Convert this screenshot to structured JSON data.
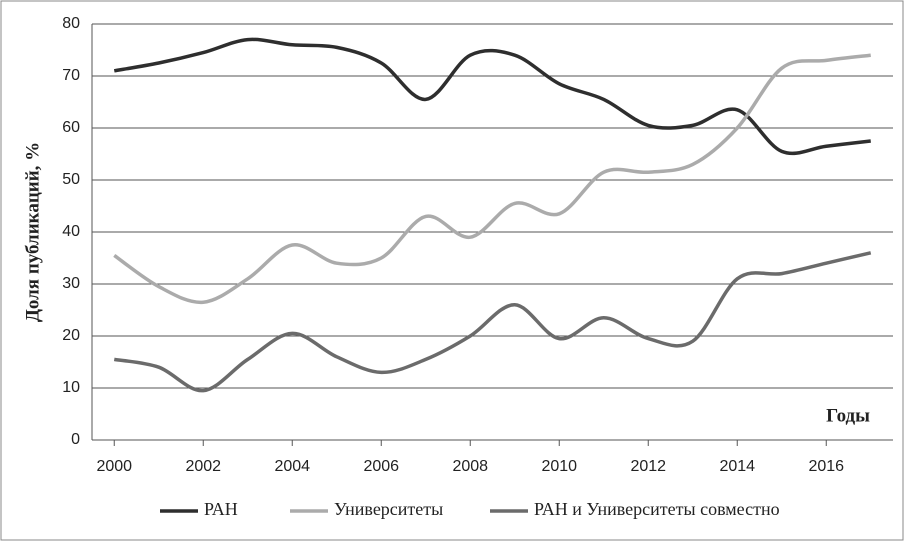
{
  "chart_data": {
    "type": "line",
    "y_label": "Доля публикаций, %",
    "annotation": "Годы",
    "x": [
      2000,
      2001,
      2002,
      2003,
      2004,
      2005,
      2006,
      2007,
      2008,
      2009,
      2010,
      2011,
      2012,
      2013,
      2014,
      2015,
      2016,
      2017
    ],
    "xlim": [
      1999.5,
      2017.5
    ],
    "xticks": [
      2000,
      2002,
      2004,
      2006,
      2008,
      2010,
      2012,
      2014,
      2016
    ],
    "ylim": [
      0,
      80
    ],
    "yticks": [
      0,
      10,
      20,
      30,
      40,
      50,
      60,
      70,
      80
    ],
    "grid": true,
    "legend": "bottom",
    "series": [
      {
        "name": "РАН",
        "color": "#2e2e2e",
        "values": [
          71,
          72.5,
          74.5,
          77,
          76,
          75.5,
          72.5,
          65.5,
          74,
          74,
          68.5,
          65.5,
          60.5,
          60.5,
          63.5,
          55.5,
          56.5,
          57.5
        ]
      },
      {
        "name": "Университеты",
        "color": "#ababab",
        "values": [
          35.5,
          29.5,
          26.5,
          31,
          37.5,
          34,
          35,
          43,
          39,
          45.5,
          43.5,
          51.5,
          51.5,
          53,
          60,
          71.5,
          73,
          74
        ]
      },
      {
        "name": "РАН и Университеты совместно",
        "color": "#6b6b6b",
        "values": [
          15.5,
          14,
          9.5,
          15.5,
          20.5,
          16,
          13,
          15.5,
          20,
          26,
          19.5,
          23.5,
          19.5,
          19,
          31,
          32,
          34,
          36
        ]
      }
    ]
  }
}
